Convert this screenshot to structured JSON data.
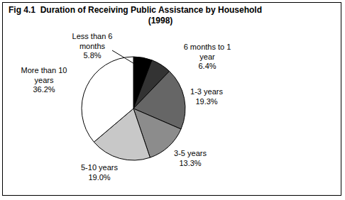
{
  "chart_data": {
    "type": "pie",
    "title": "Fig 4.1  Duration of Receiving Public Assistance by Household",
    "subtitle": "(1998)",
    "categories": [
      "Less than 6 months",
      "6 months to 1 year",
      "1-3 years",
      "3-5 years",
      "5-10 years",
      "More than 10 years"
    ],
    "values": [
      5.8,
      6.4,
      19.3,
      13.3,
      19.0,
      36.2
    ],
    "value_labels": [
      "5.8%",
      "6.4%",
      "19.3%",
      "13.3%",
      "19.0%",
      "36.2%"
    ],
    "colors": [
      "#000000",
      "#333333",
      "#666666",
      "#8c8c8c",
      "#c8c8c8",
      "#ffffff"
    ],
    "data_labels": true
  }
}
